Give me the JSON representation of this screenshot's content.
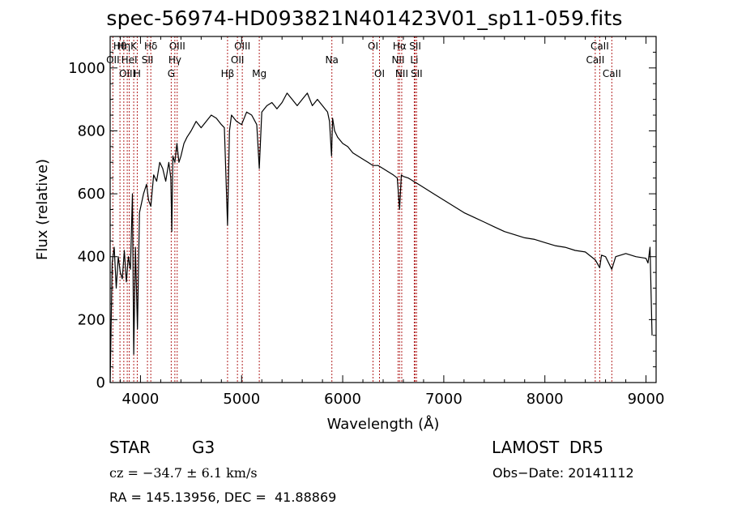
{
  "chart_data": {
    "type": "line",
    "title": "spec-56974-HD093821N401423V01_sp11-059.fits",
    "xlabel": "Wavelength (Å)",
    "ylabel": "Flux (relative)",
    "xlim": [
      3700,
      9100
    ],
    "ylim": [
      0,
      1100
    ],
    "xticks": [
      4000,
      5000,
      6000,
      7000,
      8000,
      9000
    ],
    "yticks": [
      0,
      200,
      400,
      600,
      800,
      1000
    ],
    "grid": false,
    "series": [
      {
        "x": [
          3700,
          3720,
          3740,
          3760,
          3780,
          3800,
          3820,
          3840,
          3860,
          3880,
          3900,
          3920,
          3933,
          3950,
          3970,
          3990,
          4010,
          4030,
          4060,
          4080,
          4102,
          4130,
          4160,
          4190,
          4220,
          4250,
          4280,
          4300,
          4310,
          4320,
          4340,
          4360,
          4380,
          4400,
          4430,
          4460,
          4500,
          4550,
          4600,
          4650,
          4700,
          4750,
          4800,
          4830,
          4861,
          4880,
          4900,
          4950,
          5000,
          5050,
          5100,
          5150,
          5175,
          5200,
          5250,
          5300,
          5350,
          5400,
          5450,
          5500,
          5550,
          5600,
          5650,
          5700,
          5750,
          5800,
          5850,
          5870,
          5890,
          5900,
          5920,
          5950,
          6000,
          6050,
          6100,
          6150,
          6200,
          6250,
          6300,
          6350,
          6400,
          6450,
          6500,
          6540,
          6563,
          6580,
          6600,
          6650,
          6700,
          6750,
          6800,
          6900,
          7000,
          7100,
          7200,
          7300,
          7400,
          7500,
          7600,
          7700,
          7800,
          7900,
          8000,
          8100,
          8200,
          8300,
          8400,
          8498,
          8542,
          8560,
          8600,
          8662,
          8700,
          8800,
          8900,
          9000,
          9020,
          9040,
          9060
        ],
        "values": [
          0,
          380,
          430,
          300,
          400,
          350,
          330,
          420,
          320,
          400,
          360,
          600,
          90,
          430,
          170,
          540,
          570,
          600,
          630,
          580,
          560,
          660,
          640,
          700,
          680,
          640,
          700,
          650,
          480,
          720,
          700,
          760,
          700,
          720,
          760,
          780,
          800,
          830,
          810,
          830,
          850,
          840,
          820,
          810,
          500,
          800,
          850,
          830,
          820,
          860,
          850,
          820,
          680,
          860,
          880,
          890,
          870,
          890,
          920,
          900,
          880,
          900,
          920,
          880,
          900,
          880,
          860,
          830,
          720,
          840,
          800,
          780,
          760,
          750,
          730,
          720,
          710,
          700,
          690,
          690,
          680,
          670,
          660,
          650,
          550,
          660,
          655,
          650,
          640,
          630,
          620,
          600,
          580,
          560,
          540,
          525,
          510,
          495,
          480,
          470,
          460,
          455,
          445,
          435,
          430,
          420,
          415,
          390,
          365,
          405,
          400,
          360,
          400,
          410,
          400,
          395,
          380,
          430,
          150
        ]
      }
    ],
    "annotations": [
      {
        "label": "Hθ",
        "x": 3797
      },
      {
        "label": "OII",
        "x": 3727
      },
      {
        "label": "OIII",
        "x": 3869
      },
      {
        "label": "Hη",
        "x": 3835
      },
      {
        "label": "K",
        "x": 3933
      },
      {
        "label": "HeI",
        "x": 3889
      },
      {
        "label": "H",
        "x": 3968
      },
      {
        "label": "Hδ",
        "x": 4102
      },
      {
        "label": "SII",
        "x": 4069
      },
      {
        "label": "OIII",
        "x": 4363
      },
      {
        "label": "Hγ",
        "x": 4340
      },
      {
        "label": "G",
        "x": 4304
      },
      {
        "label": "Hβ",
        "x": 4861
      },
      {
        "label": "OIII",
        "x": 5007
      },
      {
        "label": "OII",
        "x": 4959
      },
      {
        "label": "Mg",
        "x": 5175
      },
      {
        "label": "Na",
        "x": 5893
      },
      {
        "label": "OI",
        "x": 6300
      },
      {
        "label": "OI",
        "x": 6364
      },
      {
        "label": "Hα",
        "x": 6563
      },
      {
        "label": "NII",
        "x": 6548
      },
      {
        "label": "NII",
        "x": 6584
      },
      {
        "label": "SII",
        "x": 6717
      },
      {
        "label": "Li",
        "x": 6708
      },
      {
        "label": "SII",
        "x": 6731
      },
      {
        "label": "CaII",
        "x": 8542
      },
      {
        "label": "CaII",
        "x": 8498
      },
      {
        "label": "CaII",
        "x": 8662
      }
    ],
    "label_rows": [
      0,
      1,
      2,
      0,
      0,
      1,
      2,
      0,
      1,
      0,
      1,
      2,
      2,
      0,
      1,
      2,
      1,
      0,
      2,
      0,
      1,
      2,
      0,
      1,
      2,
      0,
      1,
      2
    ]
  },
  "info": {
    "object_class": "STAR",
    "subclass": "G3",
    "survey": "LAMOST  DR5",
    "velocity": "cz = −34.7 ± 6.1 km/s",
    "obs_date": "Obs−Date: 20141112",
    "coords": "RA = 145.13956, DEC =  41.88869"
  },
  "colors": {
    "line": "#000000",
    "marker": "#b22222",
    "axis": "#000000"
  }
}
